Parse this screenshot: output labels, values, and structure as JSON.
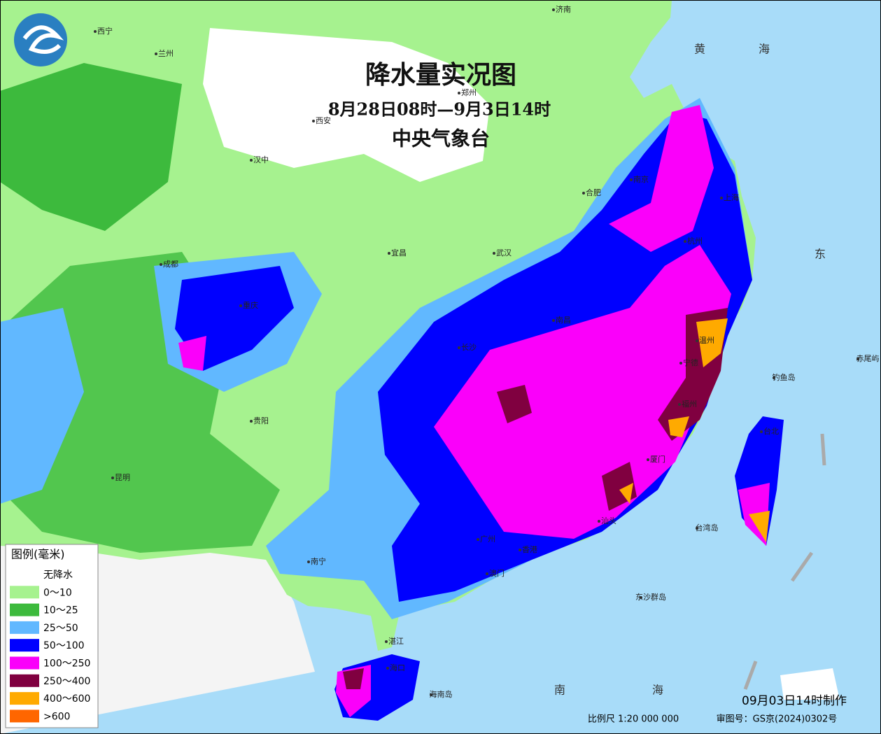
{
  "header": {
    "title": "降水量实况图",
    "period": "8月28日08时—9月3日14时",
    "agency": "中央气象台"
  },
  "legend": {
    "title": "图例(毫米)",
    "items": [
      {
        "label": "无降水",
        "color": "#ffffff"
      },
      {
        "label": "0～10",
        "color": "#a6f28f"
      },
      {
        "label": "10～25",
        "color": "#3dba3d"
      },
      {
        "label": "25～50",
        "color": "#61b8ff"
      },
      {
        "label": "50～100",
        "color": "#0000ff"
      },
      {
        "label": "100～250",
        "color": "#fa00fa"
      },
      {
        "label": "250～400",
        "color": "#800040"
      },
      {
        "label": "400～600",
        "color": "#ffaa00"
      },
      {
        "label": ">600",
        "color": "#ff6600"
      }
    ]
  },
  "places": [
    "济南",
    "郑州",
    "西安",
    "南京",
    "上海",
    "合肥",
    "武汉",
    "杭州",
    "南昌",
    "长沙",
    "福州",
    "台北",
    "台湾岛",
    "广州",
    "香港",
    "澳门",
    "海口",
    "南宁",
    "贵阳",
    "重庆",
    "成都",
    "昆明",
    "兰州",
    "西宁",
    "汉中",
    "宜昌",
    "温州",
    "宁德",
    "厦门",
    "汕头",
    "湛江",
    "东沙群岛",
    "钓鱼岛",
    "赤尾屿",
    "海南岛"
  ],
  "seas": [
    "黄",
    "海",
    "东",
    "南",
    "海"
  ],
  "footer": {
    "made": "09月03日14时制作",
    "scale": "比例尺 1:20 000 000",
    "review": "审图号：GS京(2024)0302号"
  }
}
